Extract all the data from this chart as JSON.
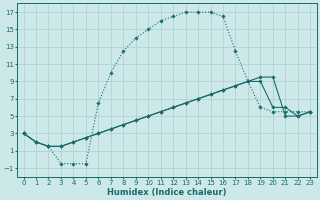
{
  "xlabel": "Humidex (Indice chaleur)",
  "bg_color": "#cce8e8",
  "grid_color": "#aacfcf",
  "line_color": "#1a6b6b",
  "xlim": [
    -0.5,
    23.5
  ],
  "ylim": [
    -2,
    18
  ],
  "xticks": [
    0,
    1,
    2,
    3,
    4,
    5,
    6,
    7,
    8,
    9,
    10,
    11,
    12,
    13,
    14,
    15,
    16,
    17,
    18,
    19,
    20,
    21,
    22,
    23
  ],
  "yticks": [
    -1,
    1,
    3,
    5,
    7,
    9,
    11,
    13,
    15,
    17
  ],
  "line1_x": [
    0,
    1,
    2,
    3,
    4,
    5,
    6,
    7,
    8,
    9,
    10,
    11,
    12,
    13,
    14,
    15,
    16,
    17,
    18,
    19,
    20,
    21,
    22,
    23
  ],
  "line1_y": [
    3,
    2,
    1.5,
    -0.5,
    -0.5,
    -0.5,
    6.5,
    10,
    12.5,
    14,
    15,
    16,
    16.5,
    17,
    17,
    17,
    16.5,
    12.5,
    9.0,
    6,
    5.5,
    5.5,
    5.5,
    5.5
  ],
  "line2_x": [
    0,
    1,
    2,
    3,
    4,
    5,
    6,
    7,
    8,
    9,
    10,
    11,
    12,
    13,
    14,
    15,
    16,
    17,
    18,
    19,
    20,
    21,
    22,
    23
  ],
  "line2_y": [
    3,
    2,
    1.5,
    1.5,
    2.0,
    2.5,
    3.0,
    3.5,
    4.0,
    4.5,
    5.0,
    5.5,
    6.0,
    6.5,
    7.0,
    7.5,
    8.0,
    8.5,
    9.0,
    9.0,
    6.0,
    6.0,
    5.0,
    5.5
  ],
  "line3_x": [
    0,
    1,
    2,
    3,
    4,
    5,
    6,
    7,
    8,
    9,
    10,
    11,
    12,
    13,
    14,
    15,
    16,
    17,
    18,
    19,
    20,
    21,
    22,
    23
  ],
  "line3_y": [
    3,
    2,
    1.5,
    1.5,
    2.0,
    2.5,
    3.0,
    3.5,
    4.0,
    4.5,
    5.0,
    5.5,
    6.0,
    6.5,
    7.0,
    7.5,
    8.0,
    8.5,
    9.0,
    9.5,
    9.5,
    5.0,
    5.0,
    5.5
  ]
}
